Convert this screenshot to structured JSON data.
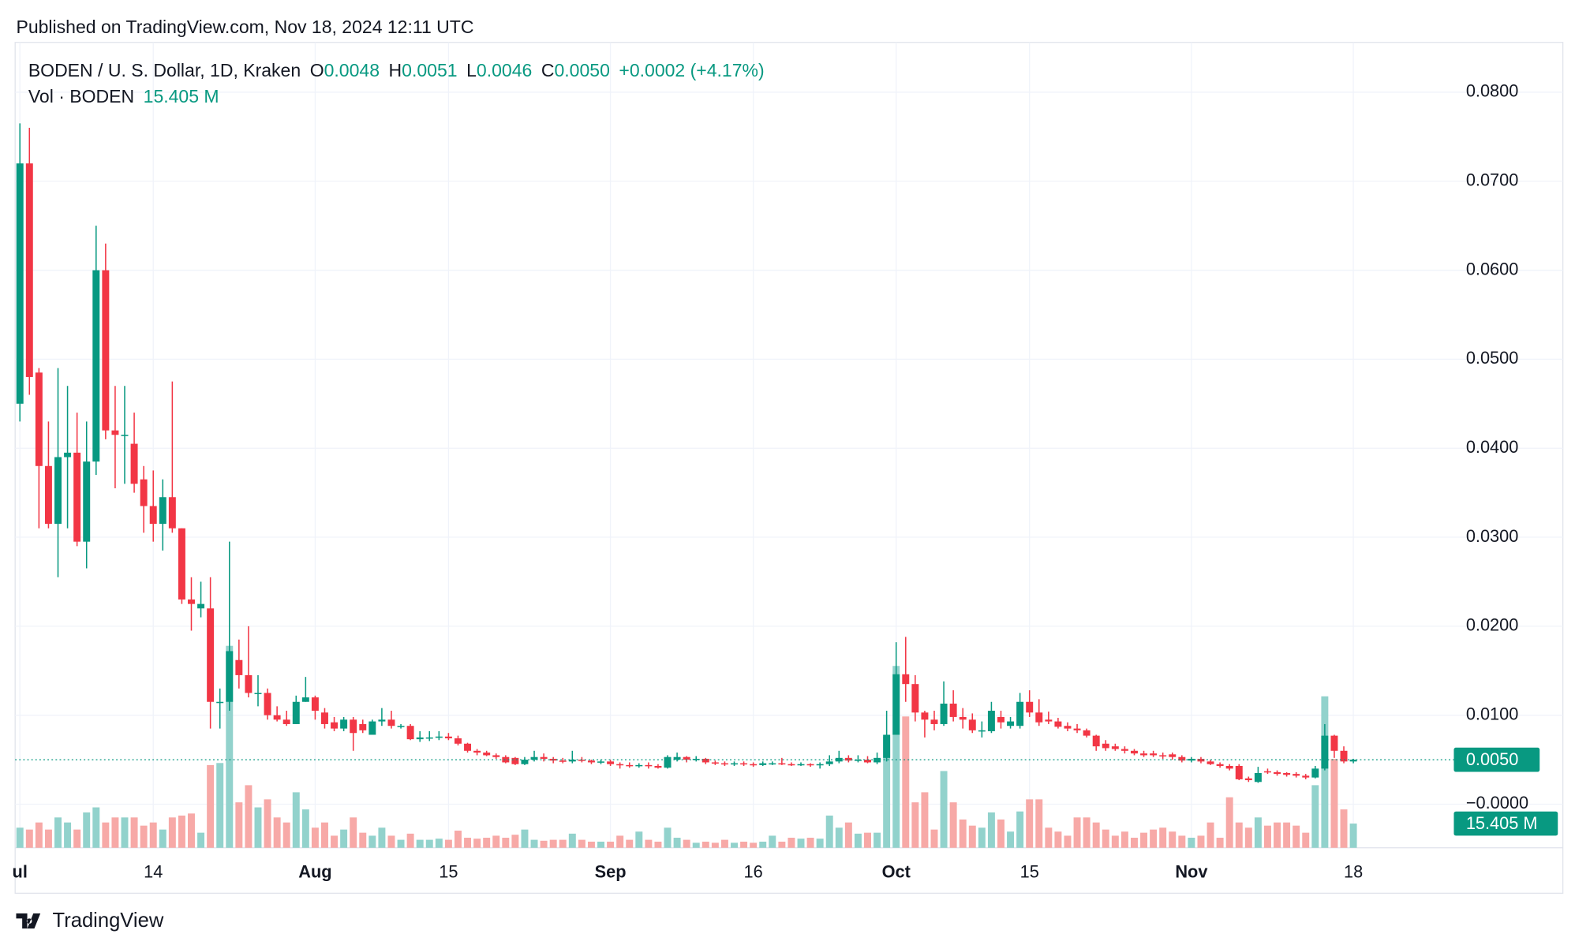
{
  "chart_data": {
    "type": "candlestick",
    "published": "Published on TradingView.com, Nov 18, 2024 12:11 UTC",
    "brand": "TradingView",
    "legend": {
      "symbol": "BODEN / U. S. Dollar, 1D, Kraken",
      "o_label": "O",
      "o_value": "0.0048",
      "h_label": "H",
      "h_value": "0.0051",
      "l_label": "L",
      "l_value": "0.0046",
      "c_label": "C",
      "c_value": "0.0050",
      "change": "+0.0002 (+4.17%)",
      "vol_label": "Vol · BODEN",
      "vol_value": "15.405 M"
    },
    "up_color": "#089981",
    "down_color": "#f23645",
    "volume_up_color": "#92d2cc",
    "volume_down_color": "#f7a9a7",
    "open": [
      0.045,
      0.072,
      0.0485,
      0.038,
      0.0315,
      0.039,
      0.0395,
      0.0295,
      0.0385,
      0.06,
      0.042,
      0.0415,
      0.0405,
      0.0365,
      0.0335,
      0.0315,
      0.0345,
      0.031,
      0.023,
      0.022,
      0.022,
      0.0115,
      0.0115,
      0.0162,
      0.0145,
      0.0125,
      0.0125,
      0.01,
      0.0095,
      0.009,
      0.0115,
      0.012,
      0.0103,
      0.0092,
      0.0085,
      0.0095,
      0.009,
      0.0078,
      0.0093,
      0.0095,
      0.0088,
      0.0088,
      0.0073,
      0.0074,
      0.0075,
      0.0076,
      0.0074,
      0.0068,
      0.006,
      0.0058,
      0.0055,
      0.0053,
      0.0052,
      0.0045,
      0.005,
      0.0053,
      0.0051,
      0.0049,
      0.0048,
      0.005,
      0.0049,
      0.0047,
      0.0048,
      0.0045,
      0.0044,
      0.0043,
      0.0044,
      0.0043,
      0.0041,
      0.005,
      0.0053,
      0.005,
      0.0051,
      0.0047,
      0.0046,
      0.0045,
      0.0046,
      0.0045,
      0.0044,
      0.0046,
      0.0046,
      0.0045,
      0.0044,
      0.0045,
      0.0044,
      0.0045,
      0.0048,
      0.0052,
      0.0049,
      0.005,
      0.0047,
      0.0052,
      0.0078,
      0.0146,
      0.0135,
      0.0103,
      0.0095,
      0.009,
      0.0113,
      0.0098,
      0.0095,
      0.0082,
      0.0082,
      0.0098,
      0.0088,
      0.0088,
      0.0115,
      0.0103,
      0.0095,
      0.0093,
      0.0088,
      0.0085,
      0.0083,
      0.0077,
      0.0068,
      0.0065,
      0.0062,
      0.006,
      0.0057,
      0.0057,
      0.0055,
      0.0056,
      0.0053,
      0.0049,
      0.0051,
      0.0048,
      0.0045,
      0.0043,
      0.0043,
      0.0029,
      0.0025,
      0.0037,
      0.0036,
      0.0035,
      0.0034,
      0.0032,
      0.003,
      0.004,
      0.0077,
      0.006,
      0.0048
    ],
    "high": [
      0.0765,
      0.076,
      0.049,
      0.043,
      0.049,
      0.047,
      0.044,
      0.043,
      0.065,
      0.063,
      0.047,
      0.047,
      0.044,
      0.038,
      0.0375,
      0.0365,
      0.0475,
      0.031,
      0.0255,
      0.025,
      0.0255,
      0.013,
      0.0295,
      0.0185,
      0.02,
      0.0145,
      0.013,
      0.011,
      0.0105,
      0.0122,
      0.0143,
      0.0122,
      0.0108,
      0.0098,
      0.0098,
      0.0098,
      0.0095,
      0.0095,
      0.0108,
      0.0105,
      0.009,
      0.009,
      0.0082,
      0.0082,
      0.0082,
      0.008,
      0.0077,
      0.0069,
      0.0062,
      0.006,
      0.0057,
      0.0055,
      0.0053,
      0.0053,
      0.006,
      0.0057,
      0.0053,
      0.0052,
      0.006,
      0.0053,
      0.005,
      0.005,
      0.005,
      0.0047,
      0.0047,
      0.0046,
      0.0047,
      0.0045,
      0.0055,
      0.0058,
      0.0054,
      0.0054,
      0.0052,
      0.0049,
      0.0048,
      0.0048,
      0.0048,
      0.0047,
      0.0048,
      0.0048,
      0.0052,
      0.0047,
      0.0047,
      0.0046,
      0.0047,
      0.0055,
      0.006,
      0.0055,
      0.0055,
      0.0054,
      0.0058,
      0.0105,
      0.0182,
      0.0188,
      0.0145,
      0.0105,
      0.0105,
      0.0138,
      0.0128,
      0.0108,
      0.0102,
      0.0093,
      0.0115,
      0.0105,
      0.0098,
      0.0125,
      0.0128,
      0.0118,
      0.0104,
      0.0097,
      0.0092,
      0.009,
      0.0085,
      0.0078,
      0.0072,
      0.0068,
      0.0065,
      0.0062,
      0.006,
      0.006,
      0.0058,
      0.0058,
      0.0055,
      0.0053,
      0.0053,
      0.005,
      0.0047,
      0.0045,
      0.0045,
      0.0031,
      0.0042,
      0.004,
      0.0038,
      0.0036,
      0.0036,
      0.0034,
      0.0043,
      0.009,
      0.0078,
      0.0065,
      0.0051
    ],
    "low": [
      0.043,
      0.046,
      0.031,
      0.031,
      0.0255,
      0.031,
      0.029,
      0.0265,
      0.037,
      0.041,
      0.0355,
      0.036,
      0.035,
      0.0305,
      0.0295,
      0.0285,
      0.0305,
      0.0225,
      0.0195,
      0.021,
      0.0085,
      0.0085,
      0.0105,
      0.013,
      0.012,
      0.011,
      0.0095,
      0.0093,
      0.0088,
      0.009,
      0.0115,
      0.0095,
      0.0085,
      0.0082,
      0.0082,
      0.006,
      0.008,
      0.0078,
      0.0088,
      0.0085,
      0.0085,
      0.0072,
      0.007,
      0.0071,
      0.0072,
      0.0072,
      0.0066,
      0.0058,
      0.0055,
      0.0054,
      0.0051,
      0.0046,
      0.0044,
      0.0044,
      0.0048,
      0.0048,
      0.0046,
      0.0046,
      0.0046,
      0.0047,
      0.0045,
      0.0045,
      0.0043,
      0.004,
      0.0041,
      0.0041,
      0.004,
      0.004,
      0.004,
      0.0048,
      0.0047,
      0.0048,
      0.0045,
      0.0044,
      0.0043,
      0.0043,
      0.0043,
      0.0042,
      0.0043,
      0.0044,
      0.0044,
      0.0043,
      0.0043,
      0.0042,
      0.004,
      0.0043,
      0.0046,
      0.0047,
      0.0047,
      0.0046,
      0.0045,
      0.0048,
      0.0078,
      0.0115,
      0.0093,
      0.0075,
      0.0083,
      0.0088,
      0.0093,
      0.0085,
      0.008,
      0.0075,
      0.008,
      0.0085,
      0.0085,
      0.0085,
      0.0098,
      0.0088,
      0.009,
      0.0085,
      0.0082,
      0.008,
      0.0075,
      0.006,
      0.006,
      0.006,
      0.0057,
      0.0055,
      0.0053,
      0.0053,
      0.0051,
      0.005,
      0.0047,
      0.0047,
      0.0046,
      0.0044,
      0.0041,
      0.0038,
      0.0027,
      0.0025,
      0.0024,
      0.0034,
      0.0032,
      0.0031,
      0.003,
      0.0028,
      0.0029,
      0.0038,
      0.0052,
      0.0046,
      0.0046
    ],
    "close": [
      0.072,
      0.048,
      0.038,
      0.0315,
      0.039,
      0.0395,
      0.0295,
      0.0385,
      0.06,
      0.042,
      0.0415,
      0.0415,
      0.036,
      0.0335,
      0.0315,
      0.0345,
      0.031,
      0.023,
      0.0225,
      0.0225,
      0.0115,
      0.0115,
      0.0172,
      0.0145,
      0.0125,
      0.0125,
      0.01,
      0.0095,
      0.009,
      0.0115,
      0.012,
      0.0105,
      0.009,
      0.0085,
      0.0095,
      0.008,
      0.0083,
      0.0093,
      0.0095,
      0.0088,
      0.0088,
      0.0073,
      0.0075,
      0.0075,
      0.0076,
      0.0074,
      0.0068,
      0.006,
      0.0058,
      0.0055,
      0.0053,
      0.0047,
      0.0045,
      0.005,
      0.0053,
      0.0051,
      0.0049,
      0.0048,
      0.005,
      0.0049,
      0.0047,
      0.0048,
      0.0045,
      0.0044,
      0.0043,
      0.0044,
      0.0043,
      0.0041,
      0.0053,
      0.0053,
      0.005,
      0.0051,
      0.0047,
      0.0046,
      0.0045,
      0.0046,
      0.0045,
      0.0044,
      0.0046,
      0.0046,
      0.0045,
      0.0044,
      0.0045,
      0.0044,
      0.0045,
      0.0048,
      0.0052,
      0.0049,
      0.005,
      0.0047,
      0.0052,
      0.0078,
      0.0146,
      0.0135,
      0.0103,
      0.0095,
      0.009,
      0.0113,
      0.0098,
      0.0095,
      0.0083,
      0.0083,
      0.0105,
      0.0092,
      0.0093,
      0.0115,
      0.0103,
      0.0092,
      0.0093,
      0.0087,
      0.0085,
      0.0083,
      0.0077,
      0.0065,
      0.0063,
      0.0062,
      0.006,
      0.0057,
      0.0055,
      0.0055,
      0.0054,
      0.0053,
      0.0049,
      0.0051,
      0.0048,
      0.0045,
      0.0043,
      0.004,
      0.0028,
      0.0027,
      0.0035,
      0.0036,
      0.0034,
      0.0033,
      0.0032,
      0.003,
      0.004,
      0.0077,
      0.006,
      0.0048,
      0.005
    ],
    "volume": [
      12.8,
      11.6,
      16.1,
      11.6,
      19.3,
      16.1,
      11.6,
      22.5,
      25.7,
      16.1,
      19.3,
      19.3,
      19.3,
      14.1,
      16.1,
      11.6,
      19.3,
      20.5,
      21.8,
      9.6,
      52.6,
      53.9,
      128.4,
      28.9,
      39.8,
      25.7,
      30.8,
      19.3,
      16.1,
      35.3,
      24.4,
      12.8,
      16.1,
      7.7,
      11.6,
      19.3,
      9.6,
      7.7,
      12.8,
      7.7,
      5.1,
      9.0,
      5.1,
      5.1,
      5.8,
      5.1,
      10.9,
      6.4,
      5.8,
      6.4,
      7.7,
      6.4,
      8.3,
      11.6,
      5.1,
      4.5,
      5.1,
      5.1,
      9.0,
      5.1,
      3.9,
      3.9,
      3.9,
      7.7,
      5.1,
      10.3,
      5.1,
      3.9,
      12.8,
      6.4,
      5.1,
      3.2,
      3.9,
      3.2,
      5.1,
      3.2,
      3.9,
      3.2,
      3.9,
      7.7,
      3.9,
      6.4,
      5.8,
      6.4,
      5.8,
      20.5,
      12.8,
      16.1,
      9.0,
      9.6,
      9.6,
      70.6,
      115.6,
      83.5,
      28.9,
      35.3,
      11.6,
      48.8,
      28.9,
      18.0,
      14.1,
      12.8,
      22.5,
      18.0,
      10.3,
      23.1,
      30.8,
      30.8,
      12.8,
      10.3,
      7.7,
      19.3,
      19.3,
      16.1,
      11.6,
      7.7,
      10.3,
      6.4,
      9.6,
      11.6,
      12.8,
      10.3,
      7.7,
      6.4,
      7.7,
      16.1,
      6.4,
      32.1,
      16.1,
      12.8,
      19.3,
      14.1,
      16.1,
      16.1,
      14.1,
      9.6,
      39.8,
      96.3,
      56.5,
      24.4,
      15.405
    ],
    "xlim": [
      -0.5,
      162
    ],
    "xticks": [
      {
        "value": 0,
        "label": "ul"
      },
      14,
      {
        "value": 31,
        "label": "Aug"
      },
      {
        "value": 45,
        "label": "15"
      },
      {
        "value": 62,
        "label": "Sep"
      },
      {
        "value": 77,
        "label": "16"
      },
      {
        "value": 92,
        "label": "Oct"
      },
      {
        "value": 106,
        "label": "15"
      },
      {
        "value": 123,
        "label": "Nov"
      },
      {
        "value": 140,
        "label": "18"
      }
    ],
    "ylim": [
      -0.0049,
      0.0856
    ],
    "yticks": [
      {
        "value": 0,
        "label": "−0.0000"
      },
      {
        "value": 0.01,
        "label": "0.0100"
      },
      {
        "value": 0.02,
        "label": "0.0200"
      },
      {
        "value": 0.03,
        "label": "0.0300"
      },
      {
        "value": 0.04,
        "label": "0.0400"
      },
      {
        "value": 0.05,
        "label": "0.0500"
      },
      {
        "value": 0.06,
        "label": "0.0600"
      },
      {
        "value": 0.07,
        "label": "0.0700"
      },
      {
        "value": 0.08,
        "label": "0.0800"
      }
    ],
    "volume_ylim": [
      0,
      512
    ],
    "grid": true,
    "price_tag": {
      "value": 0.005,
      "label": "0.0050"
    },
    "volume_tag": {
      "value": 15.405,
      "label": "15.405 M"
    }
  }
}
